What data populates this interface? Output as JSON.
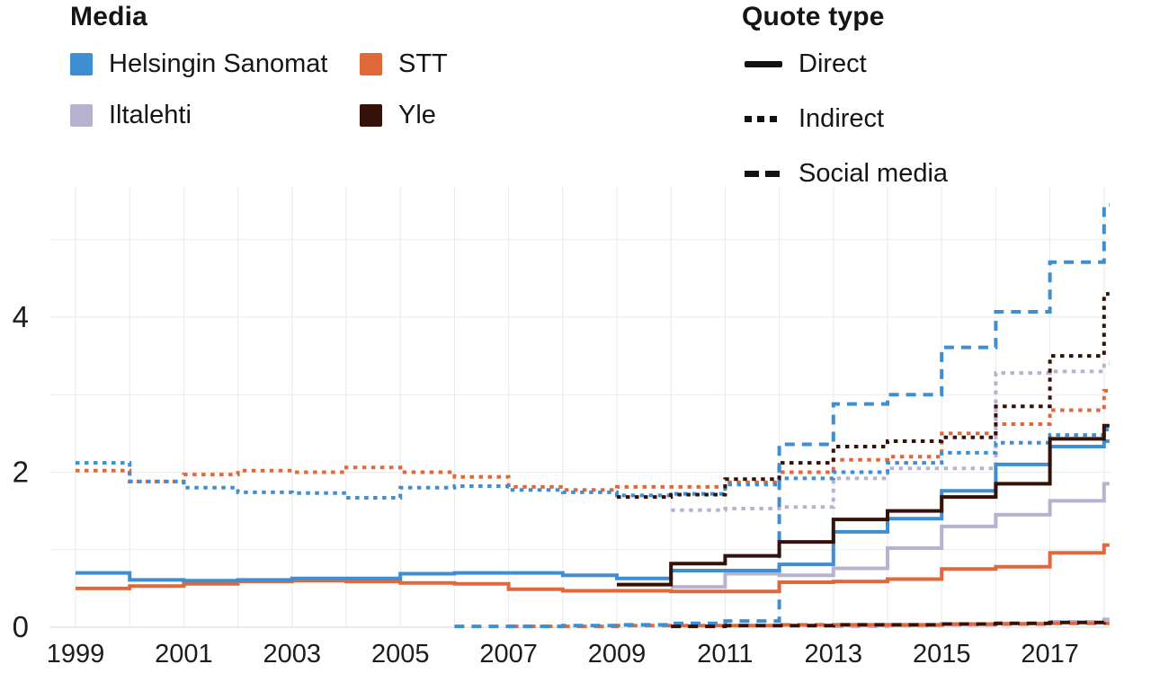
{
  "legend_media": {
    "title": "Media",
    "items": [
      {
        "key": "hs",
        "label": "Helsingin Sanomat",
        "color": "#3E8ED2"
      },
      {
        "key": "il",
        "label": "Iltalehti",
        "color": "#B7B2D0"
      },
      {
        "key": "stt",
        "label": "STT",
        "color": "#E0693C"
      },
      {
        "key": "yle",
        "label": "Yle",
        "color": "#341109"
      }
    ]
  },
  "legend_quote": {
    "title": "Quote type",
    "items": [
      {
        "key": "direct",
        "label": "Direct",
        "style": "solid"
      },
      {
        "key": "indirect",
        "label": "Indirect",
        "style": "dotted"
      },
      {
        "key": "social",
        "label": "Social media",
        "style": "dashed"
      }
    ]
  },
  "chart_data": {
    "type": "line",
    "subtype": "step",
    "title": "",
    "xlabel": "",
    "ylabel": "",
    "grid": "on",
    "xlim": [
      1998.5,
      2018.6
    ],
    "ylim": [
      0,
      5.7
    ],
    "x_ticks": [
      1999,
      2001,
      2003,
      2005,
      2007,
      2009,
      2011,
      2013,
      2015,
      2017
    ],
    "y_ticks": [
      0,
      2,
      4
    ],
    "grid_years": [
      1999,
      2000,
      2001,
      2002,
      2003,
      2004,
      2005,
      2006,
      2007,
      2008,
      2009,
      2010,
      2011,
      2012,
      2013,
      2014,
      2015,
      2016,
      2017,
      2018
    ],
    "grid_values": [
      0,
      1,
      2,
      3,
      4,
      5
    ],
    "series": [
      {
        "media": "Iltalehti",
        "media_key": "il",
        "quote_type": "Indirect",
        "type_key": "indirect",
        "color": "#B7B2D0",
        "x": [
          2010,
          2011,
          2012,
          2013,
          2014,
          2015,
          2016,
          2017,
          2018
        ],
        "values": [
          1.51,
          1.53,
          1.55,
          1.92,
          2.05,
          2.05,
          3.28,
          3.3,
          3.4
        ]
      },
      {
        "media": "STT",
        "media_key": "stt",
        "quote_type": "Indirect",
        "type_key": "indirect",
        "color": "#E0693C",
        "x": [
          1999,
          2000,
          2001,
          2002,
          2003,
          2004,
          2005,
          2006,
          2007,
          2008,
          2009,
          2010,
          2011,
          2012,
          2013,
          2014,
          2015,
          2016,
          2017,
          2018
        ],
        "values": [
          2.02,
          1.88,
          1.97,
          2.02,
          2.0,
          2.06,
          2.0,
          1.94,
          1.81,
          1.77,
          1.81,
          1.81,
          1.87,
          2.0,
          2.16,
          2.2,
          2.5,
          2.62,
          2.8,
          3.05
        ]
      },
      {
        "media": "Helsingin Sanomat",
        "media_key": "hs",
        "quote_type": "Indirect",
        "type_key": "indirect",
        "color": "#3E8ED2",
        "x": [
          1999,
          2000,
          2001,
          2002,
          2003,
          2004,
          2005,
          2006,
          2007,
          2008,
          2009,
          2010,
          2011,
          2012,
          2013,
          2014,
          2015,
          2016,
          2017,
          2018
        ],
        "values": [
          2.12,
          1.88,
          1.8,
          1.74,
          1.73,
          1.67,
          1.8,
          1.82,
          1.77,
          1.74,
          1.7,
          1.72,
          1.84,
          1.92,
          2.0,
          2.12,
          2.25,
          2.38,
          2.48,
          2.55
        ]
      },
      {
        "media": "Yle",
        "media_key": "yle",
        "quote_type": "Indirect",
        "type_key": "indirect",
        "color": "#341109",
        "x": [
          2009,
          2010,
          2011,
          2012,
          2013,
          2014,
          2015,
          2016,
          2017,
          2018
        ],
        "values": [
          1.68,
          1.71,
          1.91,
          2.12,
          2.33,
          2.4,
          2.45,
          2.85,
          3.5,
          4.3
        ]
      },
      {
        "media": "Iltalehti",
        "media_key": "il",
        "quote_type": "Social media",
        "type_key": "social",
        "color": "#B7B2D0",
        "x": [
          2013,
          2014,
          2015,
          2016,
          2017,
          2018
        ],
        "values": [
          0.01,
          0.02,
          0.03,
          0.05,
          0.07,
          0.1
        ]
      },
      {
        "media": "STT",
        "media_key": "stt",
        "quote_type": "Social media",
        "type_key": "social",
        "color": "#E0693C",
        "x": [
          2007,
          2008,
          2009,
          2010,
          2011,
          2012,
          2013,
          2014,
          2015,
          2016,
          2017,
          2018
        ],
        "values": [
          0.01,
          0.01,
          0.02,
          0.02,
          0.02,
          0.03,
          0.03,
          0.03,
          0.04,
          0.04,
          0.05,
          0.05
        ]
      },
      {
        "media": "Helsingin Sanomat",
        "media_key": "hs",
        "quote_type": "Social media",
        "type_key": "social",
        "color": "#3E8ED2",
        "x": [
          2006,
          2007,
          2008,
          2009,
          2010,
          2011,
          2012,
          2013,
          2014,
          2015,
          2016,
          2017,
          2018
        ],
        "values": [
          0.01,
          0.01,
          0.02,
          0.03,
          0.05,
          0.08,
          2.36,
          2.88,
          3.0,
          3.61,
          4.07,
          4.71,
          5.45
        ]
      },
      {
        "media": "Yle",
        "media_key": "yle",
        "quote_type": "Social media",
        "type_key": "social",
        "color": "#341109",
        "x": [
          2010,
          2011,
          2012,
          2013,
          2014,
          2015,
          2016,
          2017,
          2018
        ],
        "values": [
          0.01,
          0.02,
          0.02,
          0.03,
          0.03,
          0.04,
          0.05,
          0.06,
          0.08
        ]
      },
      {
        "media": "Iltalehti",
        "media_key": "il",
        "quote_type": "Direct",
        "type_key": "direct",
        "color": "#B7B2D0",
        "x": [
          2010,
          2011,
          2012,
          2013,
          2014,
          2015,
          2016,
          2017,
          2018
        ],
        "values": [
          0.52,
          0.69,
          0.67,
          0.76,
          1.02,
          1.3,
          1.45,
          1.63,
          1.85
        ]
      },
      {
        "media": "STT",
        "media_key": "stt",
        "quote_type": "Direct",
        "type_key": "direct",
        "color": "#E0693C",
        "x": [
          1999,
          2000,
          2001,
          2002,
          2003,
          2004,
          2005,
          2006,
          2007,
          2008,
          2009,
          2010,
          2011,
          2012,
          2013,
          2014,
          2015,
          2016,
          2017,
          2018
        ],
        "values": [
          0.5,
          0.53,
          0.56,
          0.59,
          0.6,
          0.59,
          0.57,
          0.56,
          0.49,
          0.47,
          0.47,
          0.46,
          0.46,
          0.58,
          0.59,
          0.62,
          0.75,
          0.78,
          0.96,
          1.06
        ]
      },
      {
        "media": "Helsingin Sanomat",
        "media_key": "hs",
        "quote_type": "Direct",
        "type_key": "direct",
        "color": "#3E8ED2",
        "x": [
          1999,
          2000,
          2001,
          2002,
          2003,
          2004,
          2005,
          2006,
          2007,
          2008,
          2009,
          2010,
          2011,
          2012,
          2013,
          2014,
          2015,
          2016,
          2017,
          2018
        ],
        "values": [
          0.7,
          0.61,
          0.6,
          0.61,
          0.63,
          0.63,
          0.69,
          0.7,
          0.7,
          0.67,
          0.63,
          0.73,
          0.73,
          0.81,
          1.23,
          1.4,
          1.76,
          2.1,
          2.33,
          2.4
        ]
      },
      {
        "media": "Yle",
        "media_key": "yle",
        "quote_type": "Direct",
        "type_key": "direct",
        "color": "#341109",
        "x": [
          2009,
          2010,
          2011,
          2012,
          2013,
          2014,
          2015,
          2016,
          2017,
          2018
        ],
        "values": [
          0.55,
          0.82,
          0.92,
          1.1,
          1.39,
          1.5,
          1.68,
          1.85,
          2.43,
          2.6
        ]
      }
    ]
  }
}
